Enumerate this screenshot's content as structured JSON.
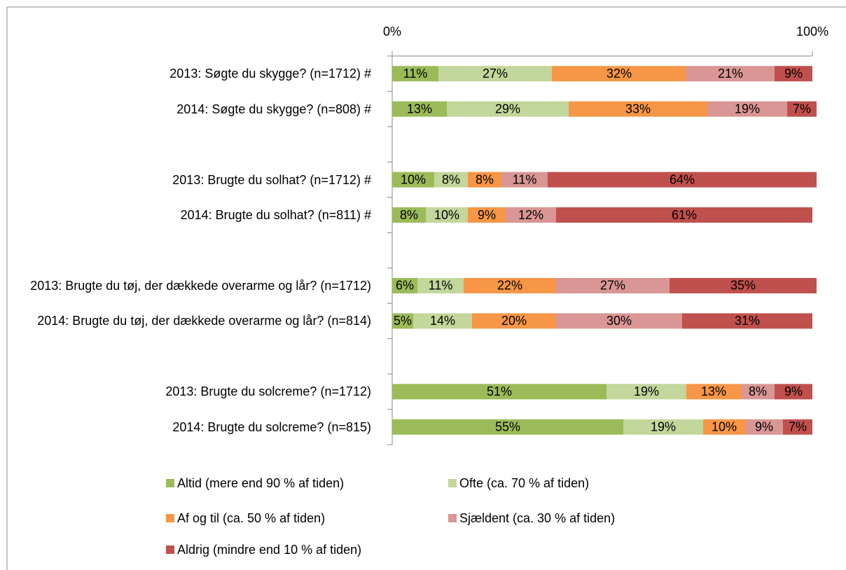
{
  "chart_data": {
    "type": "stacked-bar-horizontal",
    "categories": [
      "2013: Søgte du skygge? (n=1712) #",
      "2014: Søgte du skygge? (n=808) #",
      null,
      "2013: Brugte du solhat? (n=1712) #",
      "2014: Brugte du solhat? (n=811) #",
      null,
      "2013: Brugte du tøj, der dækkede overarme og lår? (n=1712)",
      "2014: Brugte du tøj, der dækkede overarme og lår? (n=814)",
      null,
      "2013: Brugte du solcreme? (n=1712)",
      "2014: Brugte du solcreme? (n=815)"
    ],
    "series": [
      {
        "name": "Altid (mere end 90 % af tiden)",
        "color": "#9bbb59",
        "values": [
          11,
          13,
          null,
          10,
          8,
          null,
          6,
          5,
          null,
          51,
          55
        ],
        "value_labels": [
          "11%",
          "13%",
          null,
          "10%",
          "8%",
          null,
          "6%",
          "5%",
          null,
          "51%",
          "55%"
        ]
      },
      {
        "name": "Ofte (ca. 70 % af tiden)",
        "color": "#c3d69b",
        "values": [
          27,
          29,
          null,
          8,
          10,
          null,
          11,
          14,
          null,
          19,
          19
        ],
        "value_labels": [
          "27%",
          "29%",
          null,
          "8%",
          "10%",
          null,
          "11%",
          "14%",
          null,
          "19%",
          "19%"
        ]
      },
      {
        "name": "Af og til (ca. 50 % af tiden)",
        "color": "#f79646",
        "values": [
          32,
          33,
          null,
          8,
          9,
          null,
          22,
          20,
          null,
          13,
          10
        ],
        "value_labels": [
          "32%",
          "33%",
          null,
          "8%",
          "9%",
          null,
          "22%",
          "20%",
          null,
          "13%",
          "10%"
        ]
      },
      {
        "name": "Sjældent (ca. 30 % af tiden)",
        "color": "#d99694",
        "values": [
          21,
          19,
          null,
          11,
          12,
          null,
          27,
          30,
          null,
          8,
          9
        ],
        "value_labels": [
          "21%",
          "19%",
          null,
          "11%",
          "12%",
          null,
          "27%",
          "30%",
          null,
          "8%",
          "9%"
        ]
      },
      {
        "name": "Aldrig (mindre end 10 % af tiden)",
        "color": "#c0504d",
        "values": [
          9,
          7,
          null,
          64,
          61,
          null,
          35,
          31,
          null,
          9,
          7
        ],
        "value_labels": [
          "9%",
          "7%",
          null,
          "64%",
          "61%",
          null,
          "35%",
          "31%",
          null,
          "9%",
          "7%"
        ]
      }
    ],
    "xlim": [
      0,
      100
    ],
    "xticks": [
      {
        "value": 0,
        "label": "0%"
      },
      {
        "value": 100,
        "label": "100%"
      }
    ],
    "grid": false
  }
}
